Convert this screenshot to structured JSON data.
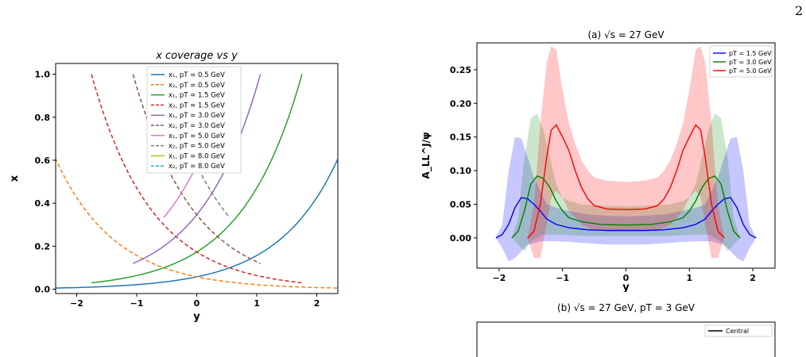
{
  "page_number": "2",
  "chart_data": [
    {
      "type": "line",
      "title": "x coverage vs y",
      "xlabel": "y",
      "ylabel": "x",
      "xlim": [
        -2.35,
        2.35
      ],
      "ylim": [
        -0.02,
        1.05
      ],
      "xticks": [
        "−2",
        "−1",
        "0",
        "1",
        "2"
      ],
      "yticks": [
        "0.0",
        "0.2",
        "0.4",
        "0.6",
        "0.8",
        "1.0"
      ],
      "legend_position": "top-center",
      "grid": false,
      "series": [
        {
          "name": "x₁, pT = 0.5 GeV",
          "color": "#1f77b4",
          "dash": false,
          "pt": 0.5,
          "kind": "x1"
        },
        {
          "name": "x₂, pT = 0.5 GeV",
          "color": "#ff7f0e",
          "dash": true,
          "pt": 0.5,
          "kind": "x2"
        },
        {
          "name": "x₁, pT = 1.5 GeV",
          "color": "#2ca02c",
          "dash": false,
          "pt": 1.5,
          "kind": "x1"
        },
        {
          "name": "x₂, pT = 1.5 GeV",
          "color": "#d62728",
          "dash": true,
          "pt": 1.5,
          "kind": "x2"
        },
        {
          "name": "x₁, pT = 3.0 GeV",
          "color": "#9467bd",
          "dash": false,
          "pt": 3.0,
          "kind": "x1"
        },
        {
          "name": "x₂, pT = 3.0 GeV",
          "color": "#8c564b",
          "dash": true,
          "pt": 3.0,
          "kind": "x2"
        },
        {
          "name": "x₁, pT = 5.0 GeV",
          "color": "#e377c2",
          "dash": false,
          "pt": 5.0,
          "kind": "x1"
        },
        {
          "name": "x₂, pT = 5.0 GeV",
          "color": "#7f7f7f",
          "dash": true,
          "pt": 5.0,
          "kind": "x2"
        },
        {
          "name": "x₁, pT = 8.0 GeV",
          "color": "#bcbd22",
          "dash": false,
          "pt": 8.0,
          "kind": "x1"
        },
        {
          "name": "x₂, pT = 8.0 GeV",
          "color": "#17becf",
          "dash": true,
          "pt": 8.0,
          "kind": "x2"
        }
      ]
    },
    {
      "type": "line",
      "title": "(a) √s = 27 GeV",
      "xlabel": "y",
      "ylabel": "A_LL^J/ψ",
      "xlim": [
        -2.35,
        2.35
      ],
      "ylim": [
        -0.045,
        0.29
      ],
      "xticks": [
        "−2",
        "−1",
        "0",
        "1",
        "2"
      ],
      "yticks": [
        "0.00",
        "0.05",
        "0.10",
        "0.15",
        "0.20",
        "0.25"
      ],
      "legend_position": "top-right",
      "grid": false,
      "series": [
        {
          "name": "pT = 1.5 GeV",
          "color": "#0000ff",
          "band_color": "rgba(0,0,255,0.22)",
          "x": [
            -2.05,
            -1.95,
            -1.85,
            -1.75,
            -1.65,
            -1.55,
            -1.45,
            -1.35,
            -1.25,
            -1.1,
            -0.9,
            -0.6,
            -0.3,
            0,
            0.3,
            0.6,
            0.9,
            1.1,
            1.25,
            1.35,
            1.45,
            1.55,
            1.65,
            1.75,
            1.85,
            1.95,
            2.05
          ],
          "central": [
            0,
            0.005,
            0.02,
            0.045,
            0.06,
            0.058,
            0.05,
            0.04,
            0.028,
            0.02,
            0.015,
            0.012,
            0.011,
            0.011,
            0.011,
            0.012,
            0.015,
            0.02,
            0.028,
            0.04,
            0.05,
            0.058,
            0.06,
            0.045,
            0.02,
            0.005,
            0
          ],
          "upper": [
            0,
            0.02,
            0.1,
            0.15,
            0.148,
            0.12,
            0.09,
            0.07,
            0.05,
            0.045,
            0.04,
            0.035,
            0.033,
            0.032,
            0.033,
            0.035,
            0.04,
            0.045,
            0.05,
            0.07,
            0.09,
            0.12,
            0.148,
            0.15,
            0.1,
            0.02,
            0
          ],
          "lower": [
            0,
            -0.015,
            -0.035,
            -0.03,
            -0.02,
            -0.01,
            -0.008,
            -0.005,
            -0.005,
            -0.005,
            -0.006,
            -0.008,
            -0.01,
            -0.01,
            -0.01,
            -0.008,
            -0.006,
            -0.005,
            -0.005,
            -0.005,
            -0.008,
            -0.01,
            -0.02,
            -0.03,
            -0.035,
            -0.015,
            0
          ]
        },
        {
          "name": "pT = 3.0 GeV",
          "color": "#008000",
          "band_color": "rgba(0,128,0,0.20)",
          "x": [
            -1.8,
            -1.7,
            -1.6,
            -1.5,
            -1.4,
            -1.3,
            -1.2,
            -1.1,
            -1,
            -0.9,
            -0.7,
            -0.4,
            0,
            0.4,
            0.7,
            0.9,
            1,
            1.1,
            1.2,
            1.3,
            1.4,
            1.5,
            1.6,
            1.7,
            1.8
          ],
          "central": [
            0,
            0.01,
            0.04,
            0.08,
            0.092,
            0.088,
            0.075,
            0.055,
            0.04,
            0.03,
            0.024,
            0.02,
            0.019,
            0.02,
            0.024,
            0.03,
            0.04,
            0.055,
            0.075,
            0.088,
            0.092,
            0.08,
            0.04,
            0.01,
            0
          ],
          "upper": [
            0,
            0.03,
            0.12,
            0.178,
            0.185,
            0.16,
            0.12,
            0.08,
            0.06,
            0.055,
            0.05,
            0.048,
            0.047,
            0.048,
            0.05,
            0.055,
            0.06,
            0.08,
            0.12,
            0.16,
            0.185,
            0.178,
            0.12,
            0.03,
            0
          ],
          "lower": [
            0,
            -0.01,
            -0.02,
            -0.005,
            0,
            0.005,
            0.005,
            0.005,
            0.005,
            0.004,
            0.003,
            0.003,
            0.003,
            0.003,
            0.003,
            0.004,
            0.005,
            0.005,
            0.005,
            0.005,
            0,
            -0.005,
            -0.02,
            -0.01,
            0
          ]
        },
        {
          "name": "pT = 5.0 GeV",
          "color": "#ff0000",
          "band_color": "rgba(255,0,0,0.22)",
          "x": [
            -1.55,
            -1.45,
            -1.35,
            -1.25,
            -1.18,
            -1.1,
            -1,
            -0.9,
            -0.8,
            -0.7,
            -0.6,
            -0.5,
            -0.3,
            0,
            0.3,
            0.5,
            0.6,
            0.7,
            0.8,
            0.9,
            1,
            1.1,
            1.18,
            1.25,
            1.35,
            1.45,
            1.55
          ],
          "central": [
            0,
            0.01,
            0.05,
            0.12,
            0.16,
            0.168,
            0.15,
            0.13,
            0.1,
            0.075,
            0.058,
            0.048,
            0.043,
            0.042,
            0.043,
            0.048,
            0.058,
            0.075,
            0.1,
            0.13,
            0.15,
            0.168,
            0.16,
            0.12,
            0.05,
            0.01,
            0
          ],
          "upper": [
            0,
            0.05,
            0.17,
            0.26,
            0.285,
            0.28,
            0.22,
            0.17,
            0.14,
            0.115,
            0.1,
            0.09,
            0.085,
            0.083,
            0.085,
            0.09,
            0.1,
            0.115,
            0.14,
            0.17,
            0.22,
            0.28,
            0.285,
            0.26,
            0.17,
            0.05,
            0
          ],
          "lower": [
            0,
            -0.03,
            -0.03,
            0.02,
            0.06,
            0.07,
            0.06,
            0.04,
            0.03,
            0.02,
            0.015,
            0.012,
            0.01,
            0.01,
            0.01,
            0.012,
            0.015,
            0.02,
            0.03,
            0.04,
            0.06,
            0.07,
            0.06,
            0.02,
            -0.03,
            -0.03,
            0
          ]
        }
      ]
    },
    {
      "type": "line",
      "title": "(b) √s = 27 GeV, pT = 3 GeV",
      "legend_entries": [
        "Central"
      ]
    }
  ]
}
